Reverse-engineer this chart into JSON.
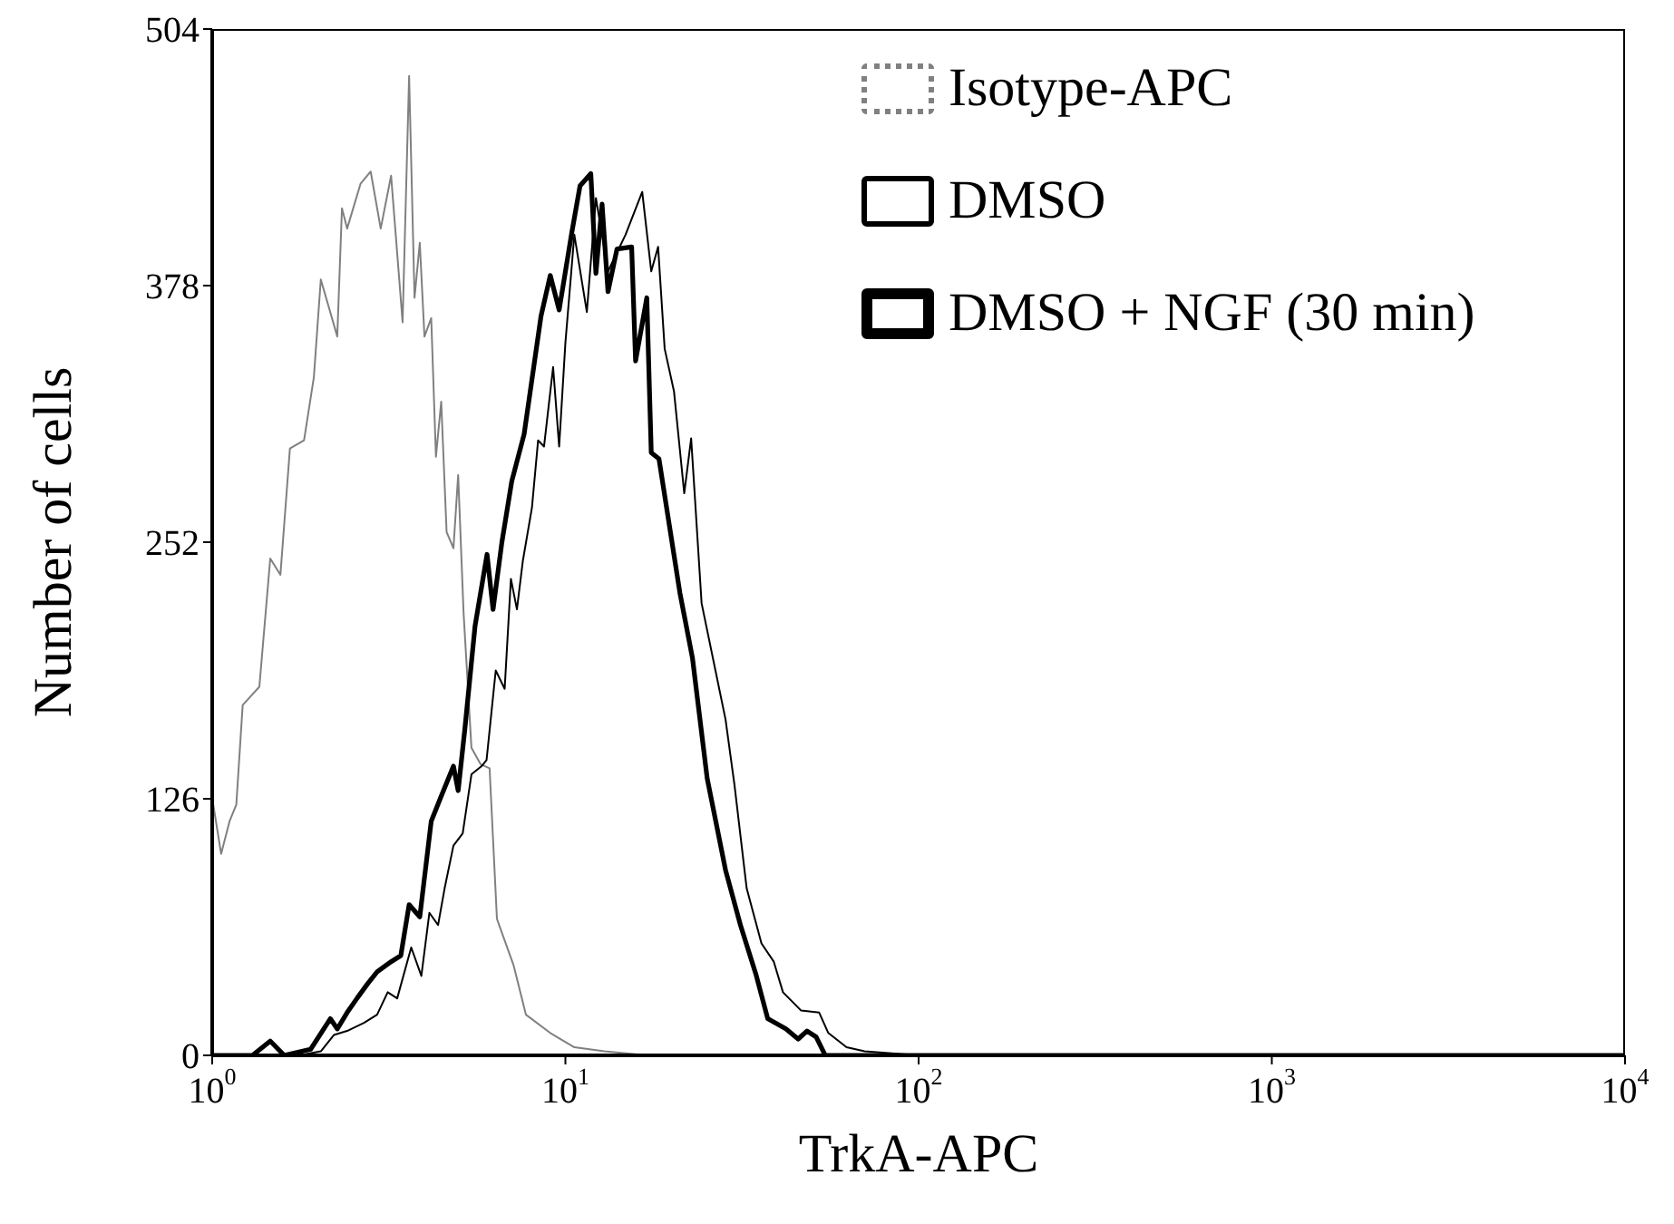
{
  "chart_data": {
    "type": "line",
    "xlabel": "TrkA-APC",
    "ylabel": "Number of cells",
    "log": "x",
    "xlim": [
      1,
      10000
    ],
    "xticks": [
      {
        "value": 1,
        "label": "10$^{0}$"
      },
      {
        "value": 10,
        "label": "10$^{1}$"
      },
      {
        "value": 100,
        "label": "10$^{2}$"
      },
      {
        "value": 1000,
        "label": "10$^{3}$"
      },
      {
        "value": 10000,
        "label": "10$^{4}$"
      }
    ],
    "ylim": [
      0,
      504
    ],
    "yticks": [
      0,
      126,
      252,
      378,
      504
    ],
    "grid": false,
    "legend": "top right",
    "marker": "none",
    "series": [
      {
        "name": "Isotype-APC",
        "color": "#808080",
        "x": [
          1.005,
          1.06,
          1.12,
          1.17,
          1.22,
          1.36,
          1.46,
          1.56,
          1.66,
          1.82,
          1.94,
          2.03,
          2.26,
          2.33,
          2.41,
          2.63,
          2.81,
          3.0,
          3.21,
          3.46,
          3.61,
          3.74,
          3.87,
          3.99,
          4.17,
          4.3,
          4.45,
          4.61,
          4.82,
          4.97,
          5.15,
          5.42,
          5.75,
          6.1,
          6.4,
          7.14,
          7.73,
          9.06,
          10.6,
          12.9,
          17.1,
          30
        ],
        "values": [
          124,
          99,
          115,
          123,
          172,
          181,
          244,
          236,
          298,
          302,
          333,
          381,
          353,
          416,
          406,
          428,
          434,
          406,
          432,
          360,
          481,
          372,
          399,
          353,
          362,
          294,
          321,
          257,
          249,
          285,
          217,
          151,
          143,
          141,
          67,
          44,
          20,
          11,
          4,
          2,
          0,
          0
        ]
      },
      {
        "name": "DMSO",
        "color": "#000000",
        "x": [
          1,
          1.76,
          2.03,
          2.21,
          2.41,
          2.69,
          2.93,
          3.14,
          3.34,
          3.66,
          3.91,
          4.12,
          4.36,
          4.55,
          4.82,
          5.12,
          5.42,
          5.79,
          5.98,
          6.35,
          6.73,
          7.01,
          7.29,
          7.58,
          8.04,
          8.37,
          8.7,
          9.23,
          9.6,
          10.0,
          10.6,
          11.5,
          12.2,
          13.2,
          14.8,
          16.5,
          17.5,
          18.3,
          19.1,
          20.3,
          21.7,
          22.7,
          24.3,
          28.4,
          30.1,
          32.6,
          35.9,
          38.9,
          41.3,
          46.5,
          52.3,
          55.5,
          62.5,
          70.3,
          100,
          1000,
          10000
        ],
        "values": [
          0,
          0,
          2,
          10,
          12,
          16,
          20,
          31,
          28,
          53,
          39,
          70,
          64,
          82,
          103,
          109,
          138,
          142,
          145,
          189,
          180,
          234,
          219,
          243,
          269,
          302,
          299,
          338,
          299,
          350,
          403,
          365,
          421,
          385,
          403,
          424,
          385,
          397,
          347,
          326,
          276,
          303,
          222,
          165,
          133,
          82,
          55,
          46,
          31,
          22,
          21,
          11,
          4,
          2,
          0,
          0,
          0
        ]
      },
      {
        "name": "DMSO + NGF (30 min)",
        "color": "#000000",
        "x": [
          1,
          1.17,
          1.3,
          1.46,
          1.6,
          1.9,
          2.16,
          2.26,
          2.41,
          2.57,
          2.75,
          2.93,
          3.21,
          3.42,
          3.61,
          3.87,
          4.17,
          4.42,
          4.82,
          4.97,
          5.19,
          5.55,
          6.0,
          6.24,
          6.61,
          7.05,
          7.64,
          8.53,
          9.06,
          9.6,
          10.4,
          11.0,
          11.8,
          12.2,
          12.7,
          13.2,
          14.0,
          15.4,
          15.8,
          17.0,
          17.5,
          18.4,
          21.1,
          22.9,
          25.2,
          28.4,
          31.3,
          34.6,
          37.4,
          42.1,
          45.6,
          48.3,
          51.3,
          54.4,
          70,
          10000
        ],
        "values": [
          0,
          0,
          0,
          7,
          0,
          3,
          18,
          13,
          21,
          28,
          35,
          41,
          46,
          49,
          74,
          68,
          115,
          126,
          142,
          130,
          160,
          211,
          246,
          219,
          252,
          282,
          305,
          363,
          383,
          366,
          403,
          427,
          433,
          384,
          418,
          375,
          396,
          397,
          341,
          372,
          296,
          293,
          227,
          195,
          136,
          91,
          64,
          40,
          18,
          13,
          8,
          12,
          9,
          0,
          0,
          0
        ]
      }
    ]
  }
}
